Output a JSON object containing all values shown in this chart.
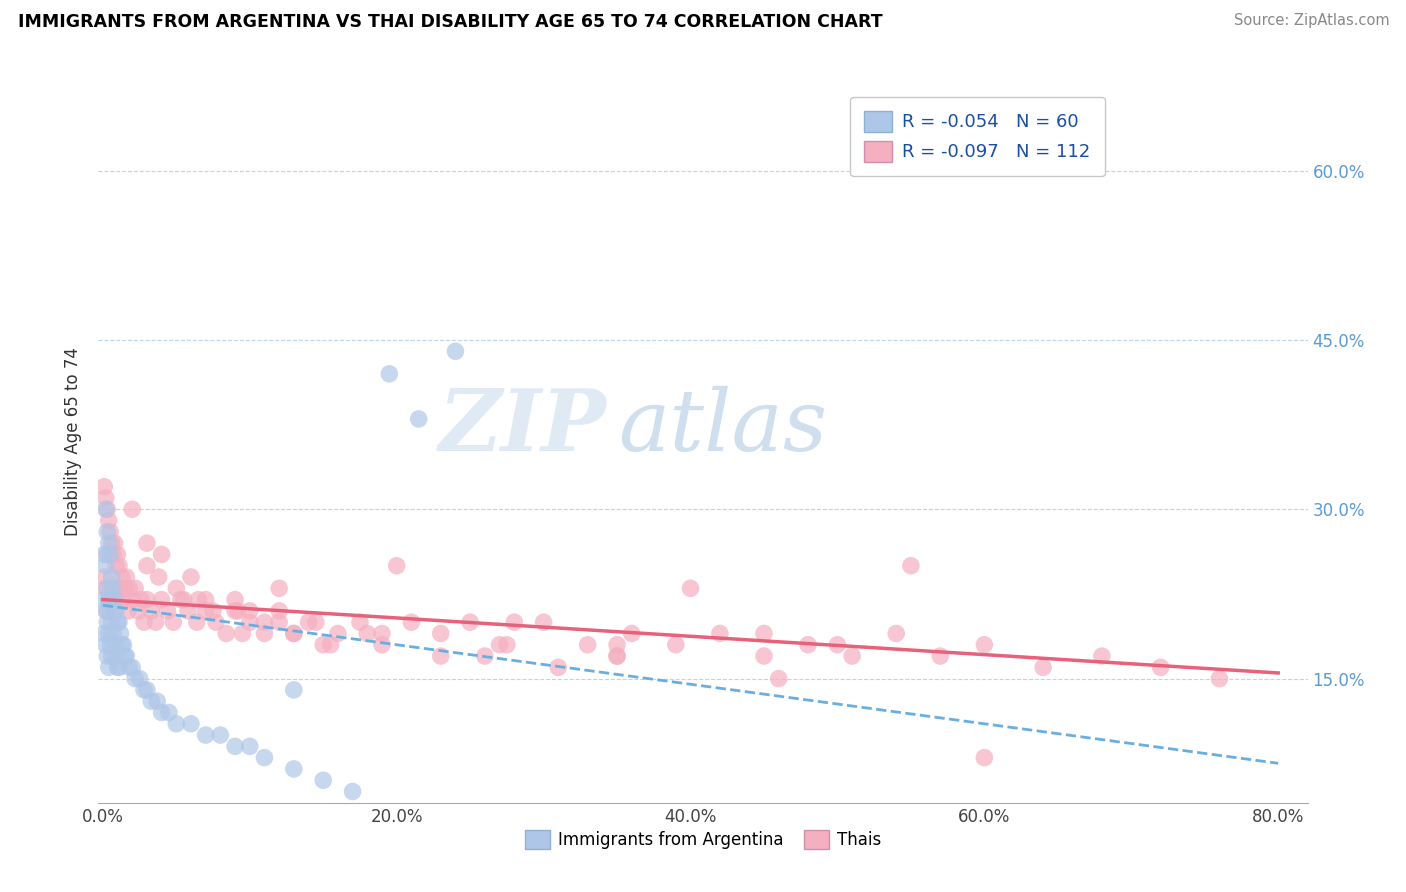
{
  "title": "IMMIGRANTS FROM ARGENTINA VS THAI DISABILITY AGE 65 TO 74 CORRELATION CHART",
  "source": "Source: ZipAtlas.com",
  "ylabel": "Disability Age 65 to 74",
  "xlim": [
    -0.003,
    0.82
  ],
  "ylim": [
    0.04,
    0.68
  ],
  "xticks": [
    0.0,
    0.2,
    0.4,
    0.6,
    0.8
  ],
  "xticklabels": [
    "0.0%",
    "20.0%",
    "40.0%",
    "60.0%",
    "80.0%"
  ],
  "ytick_positions": [
    0.15,
    0.3,
    0.45,
    0.6
  ],
  "yticklabels": [
    "15.0%",
    "30.0%",
    "45.0%",
    "60.0%"
  ],
  "legend_argentina": "R = -0.054   N = 60",
  "legend_thai": "R = -0.097   N = 112",
  "legend_label_argentina": "Immigrants from Argentina",
  "legend_label_thai": "Thais",
  "argentina_color": "#aec6e8",
  "thai_color": "#f4afc0",
  "argentina_line_color": "#6aaee0",
  "thai_line_color": "#e8607a",
  "watermark_zip": "ZIP",
  "watermark_atlas": "atlas",
  "argentina_x": [
    0.001,
    0.001,
    0.001,
    0.002,
    0.002,
    0.002,
    0.002,
    0.003,
    0.003,
    0.003,
    0.003,
    0.004,
    0.004,
    0.004,
    0.004,
    0.005,
    0.005,
    0.005,
    0.006,
    0.006,
    0.006,
    0.007,
    0.007,
    0.008,
    0.008,
    0.009,
    0.009,
    0.01,
    0.01,
    0.011,
    0.011,
    0.012,
    0.013,
    0.014,
    0.015,
    0.016,
    0.018,
    0.02,
    0.022,
    0.025,
    0.028,
    0.03,
    0.033,
    0.037,
    0.04,
    0.045,
    0.05,
    0.06,
    0.07,
    0.08,
    0.09,
    0.1,
    0.11,
    0.13,
    0.15,
    0.17,
    0.195,
    0.215,
    0.24,
    0.13
  ],
  "argentina_y": [
    0.26,
    0.22,
    0.19,
    0.3,
    0.25,
    0.21,
    0.18,
    0.28,
    0.23,
    0.2,
    0.17,
    0.27,
    0.22,
    0.19,
    0.16,
    0.26,
    0.21,
    0.18,
    0.24,
    0.2,
    0.17,
    0.23,
    0.19,
    0.22,
    0.18,
    0.21,
    0.17,
    0.2,
    0.16,
    0.2,
    0.16,
    0.19,
    0.18,
    0.18,
    0.17,
    0.17,
    0.16,
    0.16,
    0.15,
    0.15,
    0.14,
    0.14,
    0.13,
    0.13,
    0.12,
    0.12,
    0.11,
    0.11,
    0.1,
    0.1,
    0.09,
    0.09,
    0.08,
    0.07,
    0.06,
    0.05,
    0.42,
    0.38,
    0.44,
    0.14
  ],
  "thai_x": [
    0.001,
    0.001,
    0.002,
    0.002,
    0.003,
    0.003,
    0.003,
    0.004,
    0.004,
    0.005,
    0.005,
    0.006,
    0.006,
    0.007,
    0.007,
    0.008,
    0.008,
    0.009,
    0.01,
    0.01,
    0.011,
    0.012,
    0.013,
    0.014,
    0.015,
    0.016,
    0.017,
    0.018,
    0.02,
    0.022,
    0.024,
    0.026,
    0.028,
    0.03,
    0.033,
    0.036,
    0.04,
    0.044,
    0.048,
    0.053,
    0.058,
    0.064,
    0.07,
    0.077,
    0.084,
    0.092,
    0.1,
    0.11,
    0.12,
    0.13,
    0.145,
    0.16,
    0.175,
    0.19,
    0.21,
    0.23,
    0.25,
    0.275,
    0.3,
    0.33,
    0.36,
    0.39,
    0.42,
    0.45,
    0.48,
    0.51,
    0.54,
    0.57,
    0.6,
    0.64,
    0.68,
    0.72,
    0.76,
    0.038,
    0.055,
    0.075,
    0.095,
    0.12,
    0.155,
    0.19,
    0.23,
    0.27,
    0.31,
    0.35,
    0.03,
    0.05,
    0.07,
    0.09,
    0.11,
    0.13,
    0.03,
    0.06,
    0.09,
    0.12,
    0.15,
    0.4,
    0.5,
    0.2,
    0.28,
    0.35,
    0.45,
    0.55,
    0.02,
    0.04,
    0.065,
    0.1,
    0.14,
    0.18,
    0.26,
    0.35,
    0.46,
    0.6
  ],
  "thai_y": [
    0.32,
    0.24,
    0.31,
    0.23,
    0.3,
    0.26,
    0.21,
    0.29,
    0.22,
    0.28,
    0.22,
    0.27,
    0.23,
    0.26,
    0.22,
    0.27,
    0.21,
    0.25,
    0.26,
    0.22,
    0.25,
    0.23,
    0.24,
    0.22,
    0.23,
    0.24,
    0.21,
    0.23,
    0.22,
    0.23,
    0.21,
    0.22,
    0.2,
    0.22,
    0.21,
    0.2,
    0.22,
    0.21,
    0.2,
    0.22,
    0.21,
    0.2,
    0.21,
    0.2,
    0.19,
    0.21,
    0.2,
    0.19,
    0.21,
    0.19,
    0.2,
    0.19,
    0.2,
    0.18,
    0.2,
    0.19,
    0.2,
    0.18,
    0.2,
    0.18,
    0.19,
    0.18,
    0.19,
    0.17,
    0.18,
    0.17,
    0.19,
    0.17,
    0.18,
    0.16,
    0.17,
    0.16,
    0.15,
    0.24,
    0.22,
    0.21,
    0.19,
    0.2,
    0.18,
    0.19,
    0.17,
    0.18,
    0.16,
    0.17,
    0.25,
    0.23,
    0.22,
    0.21,
    0.2,
    0.19,
    0.27,
    0.24,
    0.22,
    0.23,
    0.18,
    0.23,
    0.18,
    0.25,
    0.2,
    0.18,
    0.19,
    0.25,
    0.3,
    0.26,
    0.22,
    0.21,
    0.2,
    0.19,
    0.17,
    0.17,
    0.15,
    0.08
  ],
  "arg_line_x0": 0.0,
  "arg_line_x1": 0.8,
  "arg_line_y0": 0.215,
  "arg_line_y1": 0.075,
  "thai_line_x0": 0.0,
  "thai_line_x1": 0.8,
  "thai_line_y0": 0.22,
  "thai_line_y1": 0.155
}
